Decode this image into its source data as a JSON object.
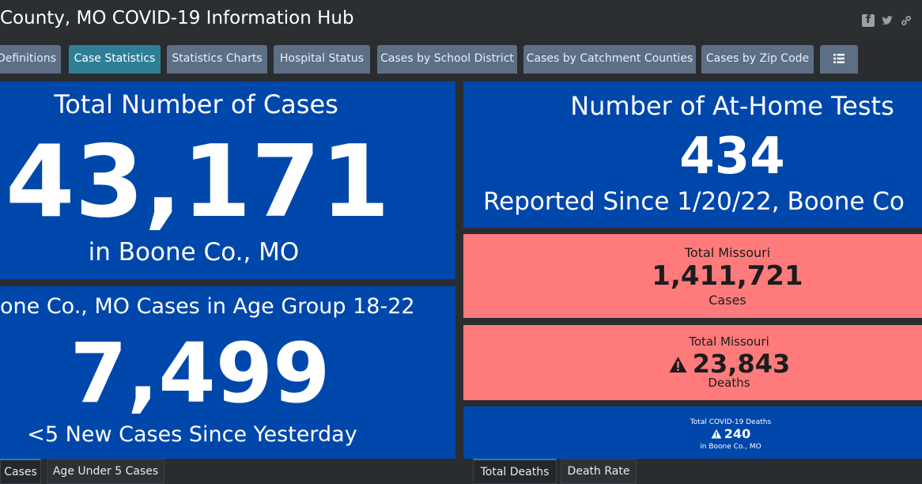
{
  "header": {
    "title": "County, MO COVID-19 Information Hub",
    "icons": [
      "facebook-icon",
      "twitter-icon",
      "link-icon"
    ]
  },
  "tabs": [
    {
      "label": "Definitions",
      "active": false
    },
    {
      "label": "Case Statistics",
      "active": true
    },
    {
      "label": "Statistics Charts",
      "active": false
    },
    {
      "label": "Hospital Status",
      "active": false
    },
    {
      "label": "Cases by School District",
      "active": false
    },
    {
      "label": "Cases by Catchment Counties",
      "active": false
    },
    {
      "label": "Cases by Zip Code",
      "active": false
    },
    {
      "icon": "list-menu-icon"
    }
  ],
  "total_cases": {
    "heading": "Total Number of Cases",
    "value": "43,171",
    "sub": "in Boone Co., MO"
  },
  "age_group": {
    "heading": "one Co., MO Cases in Age Group 18-22",
    "value": "7,499",
    "sub": "<5 New Cases Since Yesterday"
  },
  "home_tests": {
    "heading": "Number of At-Home Tests",
    "value": "434",
    "sub": "Reported Since 1/20/22, Boone Co"
  },
  "missouri_cases": {
    "heading": "Total Missouri",
    "value": "1,411,721",
    "sub": "Cases"
  },
  "missouri_deaths": {
    "heading": "Total Missouri",
    "value": "23,843",
    "sub": "Deaths",
    "icon": "warning-icon"
  },
  "boone_deaths": {
    "heading": "Total COVID-19 Deaths",
    "value": "240",
    "sub": "in Boone Co., MO",
    "icon": "warning-icon"
  },
  "bottom_tabs_left": [
    {
      "label": "Cases",
      "active": true
    },
    {
      "label": "Age Under 5 Cases",
      "active": false
    }
  ],
  "bottom_tabs_right": [
    {
      "label": "Total Deaths",
      "active": true
    },
    {
      "label": "Death Rate",
      "active": false
    }
  ],
  "colors": {
    "background": "#2a2d30",
    "panel_blue": "#0047ab",
    "panel_red": "#ff7b7b",
    "tab": "#5c6f85",
    "tab_active": "#2e7f96"
  }
}
